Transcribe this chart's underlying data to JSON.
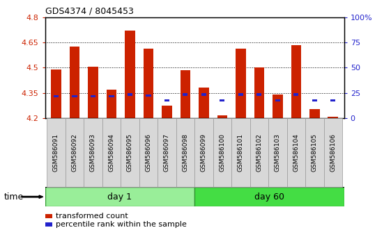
{
  "title": "GDS4374 / 8045453",
  "samples": [
    "GSM586091",
    "GSM586092",
    "GSM586093",
    "GSM586094",
    "GSM586095",
    "GSM586096",
    "GSM586097",
    "GSM586098",
    "GSM586099",
    "GSM586100",
    "GSM586101",
    "GSM586102",
    "GSM586103",
    "GSM586104",
    "GSM586105",
    "GSM586106"
  ],
  "red_values": [
    4.49,
    4.625,
    4.505,
    4.37,
    4.72,
    4.615,
    4.275,
    4.485,
    4.38,
    4.215,
    4.615,
    4.5,
    4.34,
    4.635,
    4.255,
    4.21
  ],
  "blue_values": [
    4.33,
    4.33,
    4.33,
    4.33,
    4.34,
    4.335,
    4.305,
    4.34,
    4.34,
    4.305,
    4.34,
    4.34,
    4.305,
    4.34,
    4.305,
    4.305
  ],
  "ymin": 4.2,
  "ymax": 4.8,
  "yticks": [
    4.2,
    4.35,
    4.5,
    4.65,
    4.8
  ],
  "ytick_labels": [
    "4.2",
    "4.35",
    "4.5",
    "4.65",
    "4.8"
  ],
  "y2ticks": [
    0,
    25,
    50,
    75,
    100
  ],
  "y2tick_labels": [
    "0",
    "25",
    "50",
    "75",
    "100%"
  ],
  "grid_lines": [
    4.35,
    4.5,
    4.65
  ],
  "bar_color": "#cc2200",
  "blue_color": "#2222cc",
  "bar_width": 0.55,
  "n_day1": 8,
  "n_day60": 8,
  "day1_label": "day 1",
  "day60_label": "day 60",
  "group_color_day1": "#99ee99",
  "group_color_day60": "#44dd44",
  "legend_red": "transformed count",
  "legend_blue": "percentile rank within the sample",
  "time_label": "time",
  "figsize": [
    5.61,
    3.54
  ],
  "dpi": 100
}
